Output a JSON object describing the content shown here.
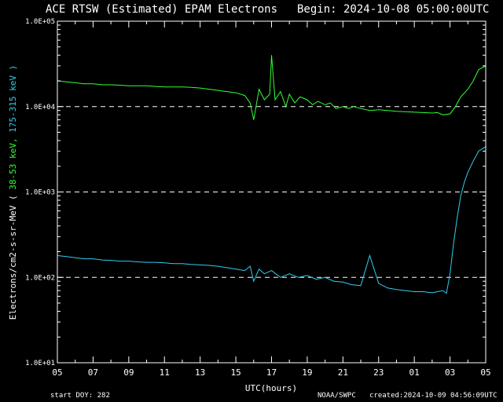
{
  "chart_data": {
    "type": "line",
    "title": "ACE RTSW (Estimated) EPAM Electrons",
    "begin_label": "Begin: 2024-10-08 05:00:00UTC",
    "xlabel": "UTC(hours)",
    "ylabel_prefix": "Electrons/cm2-s-sr-MeV  (",
    "ylabel_series1": " 38-53 keV,",
    "ylabel_series2": " 175-315 keV )",
    "y_scale": "log",
    "ylim": [
      10,
      100000
    ],
    "y_ticks": [
      {
        "value": 10,
        "label": "1.0E+01"
      },
      {
        "value": 100,
        "label": "1.0E+02"
      },
      {
        "value": 1000,
        "label": "1.0E+03"
      },
      {
        "value": 10000,
        "label": "1.0E+04"
      },
      {
        "value": 100000,
        "label": "1.0E+05"
      }
    ],
    "y_dashed_reference_lines": [
      100,
      1000,
      10000
    ],
    "xlim": [
      0,
      24
    ],
    "x_ticks": [
      {
        "value": 0,
        "label": "05"
      },
      {
        "value": 2,
        "label": "07"
      },
      {
        "value": 4,
        "label": "09"
      },
      {
        "value": 6,
        "label": "11"
      },
      {
        "value": 8,
        "label": "13"
      },
      {
        "value": 10,
        "label": "15"
      },
      {
        "value": 12,
        "label": "17"
      },
      {
        "value": 14,
        "label": "19"
      },
      {
        "value": 16,
        "label": "21"
      },
      {
        "value": 18,
        "label": "23"
      },
      {
        "value": 20,
        "label": "01"
      },
      {
        "value": 22,
        "label": "03"
      },
      {
        "value": 24,
        "label": "05"
      }
    ],
    "series": [
      {
        "color": "#33ff33",
        "x": [
          0,
          0.5,
          1,
          1.5,
          2,
          2.5,
          3,
          3.5,
          4,
          4.5,
          5,
          5.5,
          6,
          6.5,
          7,
          7.5,
          8,
          8.5,
          9,
          9.5,
          10,
          10.5,
          10.8,
          11,
          11.3,
          11.6,
          11.9,
          12.0,
          12.2,
          12.5,
          12.8,
          13,
          13.3,
          13.6,
          14,
          14.3,
          14.6,
          15,
          15.3,
          15.6,
          16,
          16.3,
          16.6,
          17,
          17.5,
          18,
          18.5,
          19,
          19.5,
          20,
          20.5,
          21,
          21.3,
          21.6,
          22,
          22.3,
          22.6,
          23,
          23.3,
          23.6,
          24
        ],
        "y": [
          20000,
          19500,
          19000,
          18500,
          18500,
          18000,
          18000,
          17800,
          17500,
          17500,
          17500,
          17200,
          17000,
          17000,
          17000,
          16800,
          16500,
          16000,
          15500,
          15000,
          14500,
          13500,
          11000,
          7000,
          16000,
          12000,
          14000,
          40000,
          12000,
          15000,
          10000,
          14000,
          11000,
          13000,
          12000,
          10500,
          11500,
          10500,
          11000,
          9500,
          10000,
          9500,
          10000,
          9500,
          9000,
          9200,
          9000,
          8800,
          8700,
          8600,
          8500,
          8400,
          8500,
          8000,
          8200,
          10000,
          13000,
          16000,
          20000,
          27000,
          30000
        ]
      },
      {
        "color": "#33ccee",
        "x": [
          0,
          0.5,
          1,
          1.5,
          2,
          2.5,
          3,
          3.5,
          4,
          4.5,
          5,
          5.5,
          6,
          6.5,
          7,
          7.5,
          8,
          8.5,
          9,
          9.5,
          10,
          10.5,
          10.8,
          11,
          11.3,
          11.6,
          12,
          12.5,
          13,
          13.5,
          14,
          14.5,
          15,
          15.5,
          16,
          16.5,
          17,
          17.5,
          18,
          18.5,
          19,
          19.5,
          20,
          20.5,
          21,
          21.3,
          21.6,
          21.8,
          22.0,
          22.2,
          22.4,
          22.6,
          22.8,
          23.0,
          23.3,
          23.6,
          24
        ],
        "y": [
          180,
          175,
          170,
          165,
          165,
          160,
          158,
          155,
          155,
          152,
          150,
          150,
          148,
          145,
          145,
          142,
          140,
          138,
          135,
          130,
          125,
          120,
          135,
          90,
          125,
          110,
          120,
          100,
          110,
          100,
          105,
          95,
          100,
          90,
          88,
          82,
          80,
          180,
          85,
          75,
          72,
          70,
          68,
          68,
          66,
          68,
          70,
          65,
          110,
          250,
          500,
          900,
          1300,
          1700,
          2300,
          3000,
          3400
        ]
      }
    ]
  },
  "footer": {
    "start_doy": "start DOY:  282",
    "source": "NOAA/SWPC",
    "created": "created:2024-10-09 04:56:09UTC"
  },
  "colors": {
    "background": "#000000",
    "axis": "#ffffff"
  }
}
